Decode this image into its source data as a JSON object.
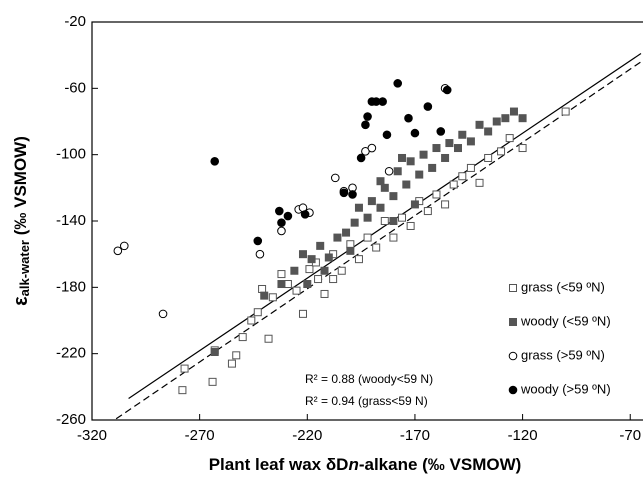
{
  "chart_data": {
    "type": "scatter",
    "x_label_parts": [
      "Plant leaf wax δD",
      "n",
      "-alkane (‰ VSMOW)"
    ],
    "y_label_parts": [
      "ε",
      "alk-water",
      " (‰ VSMOW)"
    ],
    "xlim": [
      -320,
      -65
    ],
    "ylim": [
      -260,
      -20
    ],
    "xticks": [
      -320,
      -270,
      -220,
      -170,
      -120,
      -70
    ],
    "yticks": [
      -260,
      -220,
      -180,
      -140,
      -100,
      -60,
      -20
    ],
    "legend": "lower right",
    "annotations": [
      "R² = 0.88 (woody<59 N)",
      "R² = 0.94 (grass<59 N)"
    ],
    "series": [
      {
        "name": "grass (<59 ºN)",
        "marker": "square",
        "filled": false,
        "color": "#555555",
        "x": [
          -277,
          -278,
          -264,
          -263,
          -255,
          -253,
          -250,
          -246,
          -243,
          -238,
          -241,
          -236,
          -232,
          -229,
          -225,
          -222,
          -219,
          -215,
          -212,
          -208,
          -204,
          -200,
          -196,
          -192,
          -188,
          -184,
          -180,
          -176,
          -172,
          -168,
          -164,
          -160,
          -156,
          -152,
          -148,
          -144,
          -140,
          -136,
          -130,
          -126,
          -120,
          -100,
          -216,
          -208
        ],
        "values": [
          -229,
          -242,
          -237,
          -218,
          -226,
          -221,
          -210,
          -200,
          -195,
          -211,
          -181,
          -186,
          -172,
          -178,
          -182,
          -196,
          -169,
          -175,
          -184,
          -160,
          -170,
          -154,
          -163,
          -150,
          -156,
          -140,
          -150,
          -138,
          -143,
          -128,
          -134,
          -124,
          -130,
          -118,
          -113,
          -108,
          -117,
          -102,
          -98,
          -90,
          -96,
          -74,
          -165,
          -175
        ]
      },
      {
        "name": "woody (<59 ºN)",
        "marker": "square",
        "filled": true,
        "color": "#555555",
        "x": [
          -263,
          -240,
          -232,
          -226,
          -222,
          -218,
          -214,
          -210,
          -206,
          -202,
          -198,
          -196,
          -192,
          -190,
          -186,
          -184,
          -180,
          -178,
          -174,
          -172,
          -168,
          -166,
          -162,
          -160,
          -156,
          -154,
          -150,
          -148,
          -144,
          -140,
          -136,
          -132,
          -128,
          -124,
          -120,
          -176,
          -186,
          -200,
          -212,
          -220,
          -180,
          -170
        ],
        "values": [
          -219,
          -185,
          -178,
          -170,
          -160,
          -163,
          -155,
          -162,
          -150,
          -147,
          -141,
          -132,
          -138,
          -128,
          -132,
          -120,
          -125,
          -110,
          -118,
          -104,
          -112,
          -100,
          -108,
          -96,
          -102,
          -93,
          -96,
          -88,
          -92,
          -82,
          -86,
          -80,
          -78,
          -74,
          -78,
          -102,
          -116,
          -158,
          -170,
          -178,
          -140,
          -130
        ]
      },
      {
        "name": "grass (>59 ºN)",
        "marker": "circle",
        "filled": false,
        "color": "#000000",
        "x": [
          -308,
          -305,
          -287,
          -242,
          -232,
          -224,
          -222,
          -219,
          -203,
          -199,
          -193,
          -190,
          -182,
          -207,
          -156
        ],
        "values": [
          -158,
          -155,
          -196,
          -160,
          -146,
          -133,
          -132,
          -135,
          -122,
          -120,
          -98,
          -96,
          -110,
          -114,
          -60
        ]
      },
      {
        "name": "woody (>59 ºN)",
        "marker": "circle",
        "filled": true,
        "color": "#000000",
        "x": [
          -263,
          -243,
          -233,
          -232,
          -229,
          -221,
          -203,
          -199,
          -193,
          -192,
          -190,
          -188,
          -185,
          -183,
          -178,
          -173,
          -170,
          -164,
          -158,
          -155,
          -195
        ],
        "values": [
          -104,
          -152,
          -134,
          -141,
          -137,
          -136,
          -123,
          -124,
          -82,
          -77,
          -68,
          -68,
          -68,
          -88,
          -57,
          -78,
          -87,
          -71,
          -86,
          -61,
          -102
        ]
      }
    ],
    "lines": [
      {
        "style": "solid",
        "x": [
          -303,
          -65
        ],
        "values": [
          -247,
          -39
        ]
      },
      {
        "style": "dashed",
        "x": [
          -313,
          -65
        ],
        "values": [
          -263,
          -44
        ]
      }
    ]
  }
}
